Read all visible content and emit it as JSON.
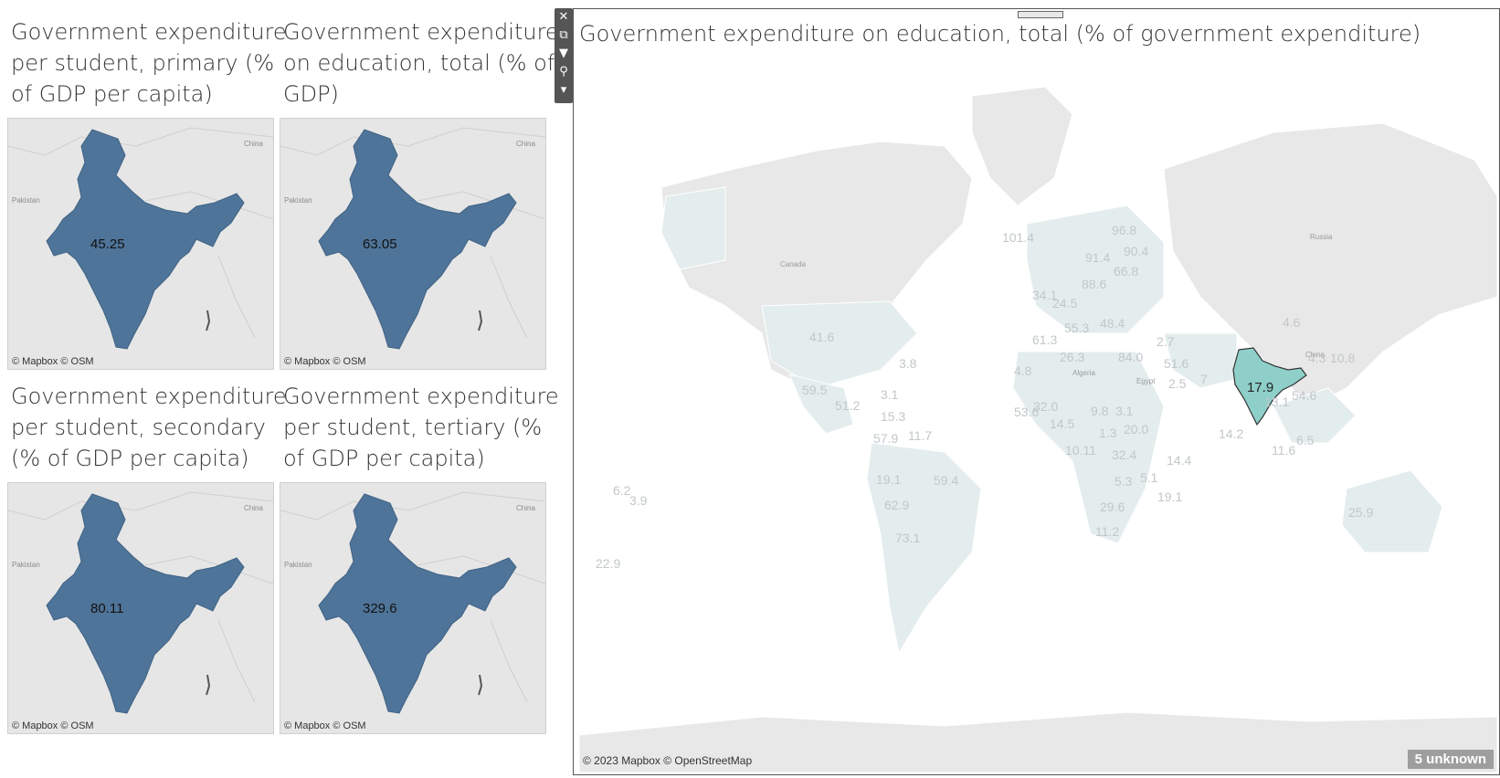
{
  "small_maps": [
    {
      "title": "Government expenditure per student, primary (% of GDP per capita)",
      "title_lines": [
        "Government expenditure",
        "per student, primary (%",
        "of GDP per capita)"
      ],
      "value": "45.25",
      "attribution": "© Mapbox © OSM"
    },
    {
      "title": "Government expenditure on education, total (% of GDP)",
      "title_lines": [
        "Government expenditure",
        "on education, total (% of",
        "GDP)"
      ],
      "value": "63.05",
      "attribution": "© Mapbox © OSM"
    },
    {
      "title": "Government expenditure per student, secondary (% of GDP per capita)",
      "title_lines": [
        "Government expenditure",
        "per student, secondary",
        "(% of GDP per capita)"
      ],
      "value": "80.11",
      "attribution": "© Mapbox © OSM"
    },
    {
      "title": "Government expenditure per student, tertiary (% of GDP per capita)",
      "title_lines": [
        "Government expenditure",
        "per student, tertiary (%",
        "of GDP per capita)"
      ],
      "value": "329.6",
      "attribution": "© Mapbox © OSM"
    }
  ],
  "small_map_places": [
    "China",
    "Pakistan"
  ],
  "big_map": {
    "title": "Government expenditure on education, total (% of government expenditure)",
    "attribution": "© 2023 Mapbox © OpenStreetMap",
    "unknown_badge": "5 unknown",
    "highlight_country": "India",
    "highlight_value": "17.9",
    "highlight_color": "#8ecfc9",
    "base_color": "#e4eded",
    "places": [
      "Canada",
      "Russia",
      "China",
      "Algeria",
      "Egypt"
    ],
    "country_values": [
      "41.6",
      "3.8",
      "59.5",
      "51.2",
      "3.1",
      "15.3",
      "57.9",
      "11.7",
      "19.1",
      "59.4",
      "62.9",
      "73.1",
      "6.2",
      "3.9",
      "22.9",
      "101.4",
      "96.8",
      "91.4",
      "90.4",
      "66.8",
      "88.6",
      "34.1",
      "24.5",
      "55.3",
      "48.4",
      "61.3",
      "26.3",
      "84.0",
      "4.8",
      "53.6",
      "32.0",
      "14.5",
      "9.8",
      "3.1",
      "1.3",
      "20.0",
      "10.11",
      "32.4",
      "5.3",
      "5.1",
      "29.6",
      "11.2",
      "14.4",
      "19.1",
      "51.6",
      "2.5",
      "7",
      "14.2",
      "13.1",
      "4.6",
      "4.3",
      "10.8",
      "54.6",
      "6.5",
      "11.6",
      "25.9",
      "2.7"
    ]
  },
  "toolbar": {
    "close_icon": "close-icon",
    "popout_icon": "popout-icon",
    "filter_icon": "filter-icon",
    "pin_icon": "pin-icon",
    "more_icon": "more-icon"
  }
}
